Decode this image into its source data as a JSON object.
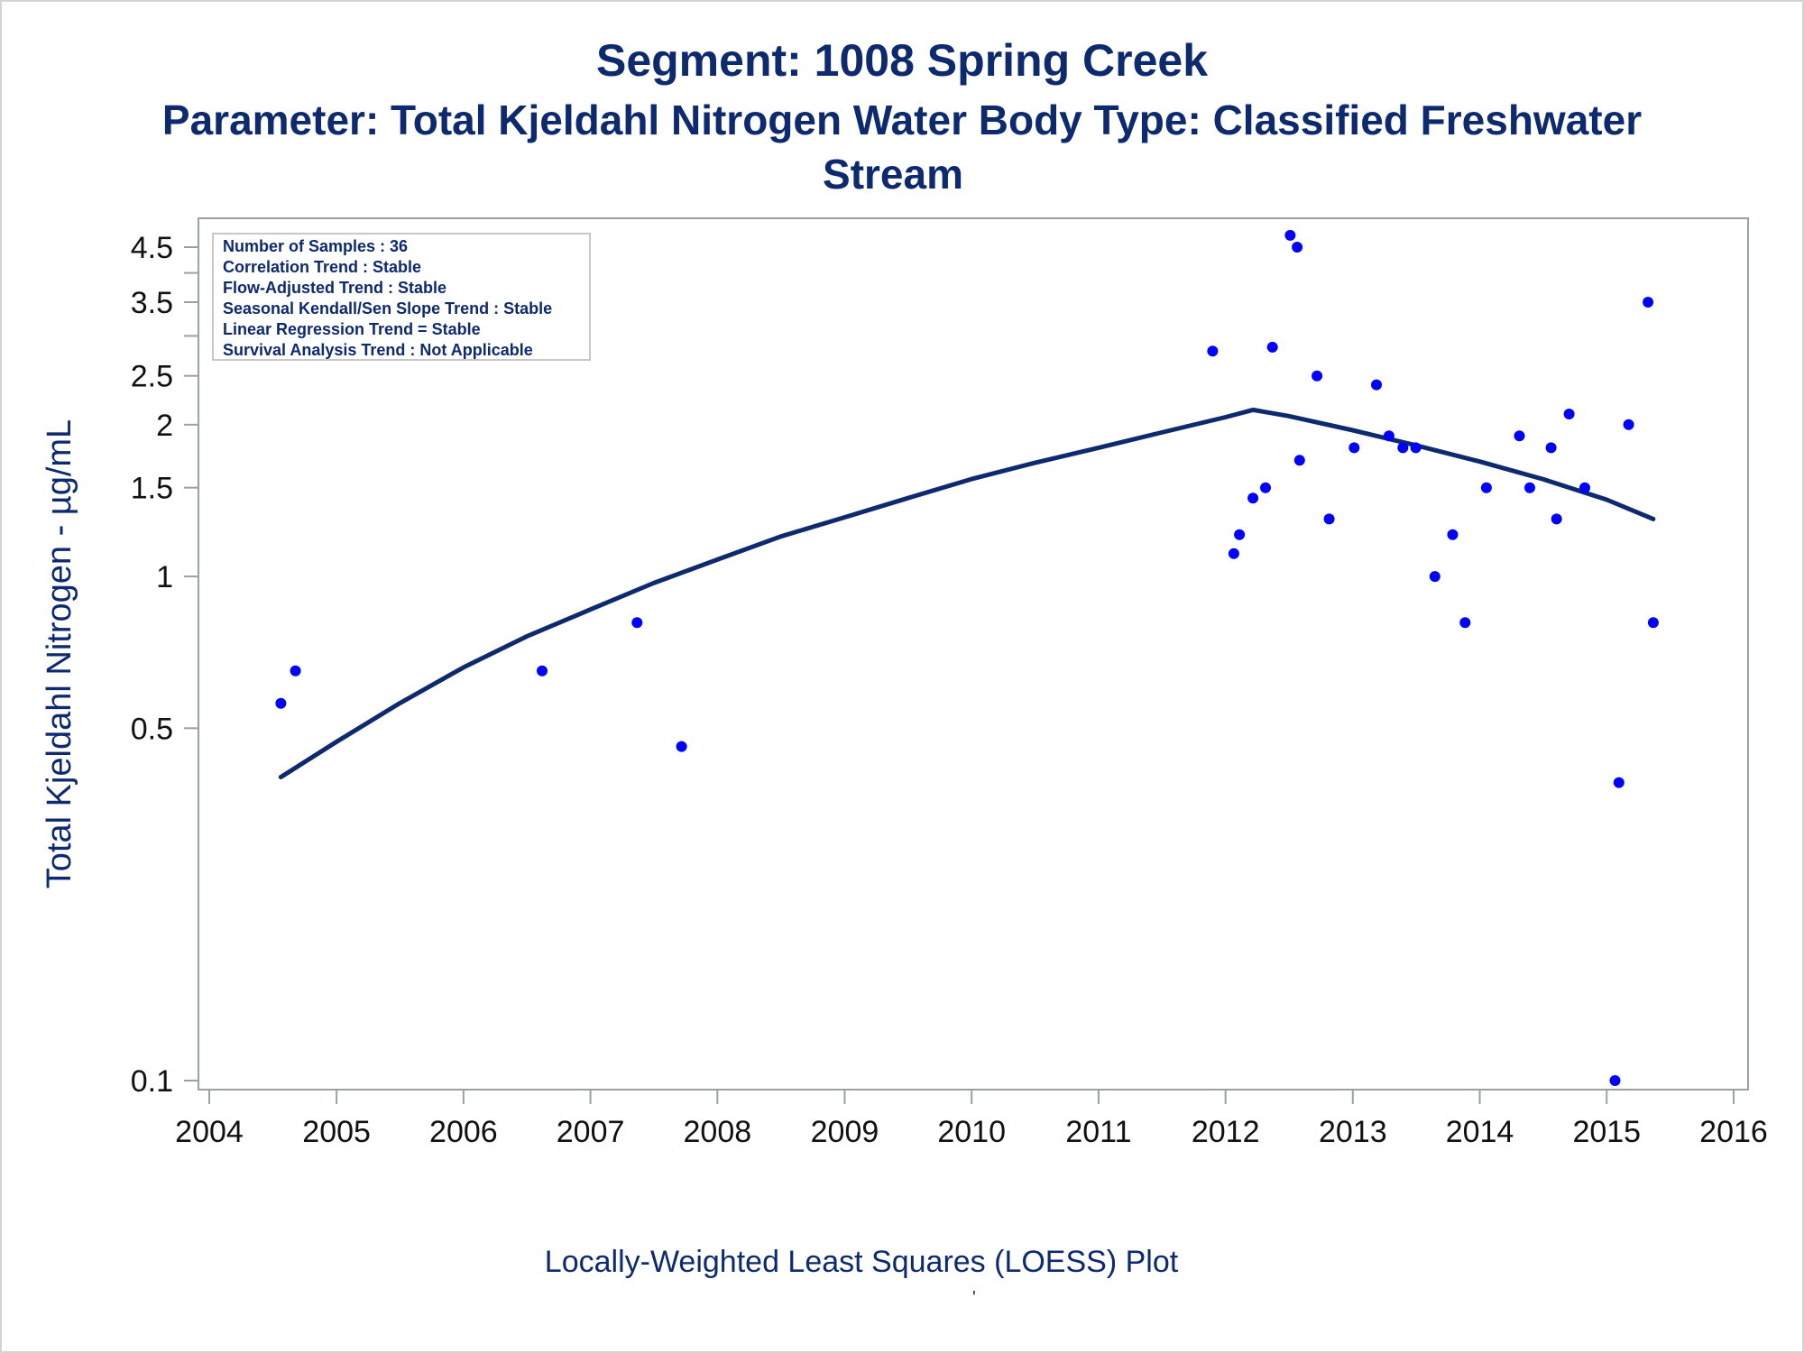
{
  "title": "Segment: 1008  Spring Creek",
  "subtitle_line1": "Parameter: Total Kjeldahl Nitrogen   Water Body Type: Classified Freshwater",
  "subtitle_line2": "Stream",
  "footnote": "Locally-Weighted Least Squares (LOESS) Plot",
  "footnote_mark": "'",
  "colors": {
    "text": "#0d2a6e",
    "points": "#0000ff",
    "curve": "#0d2a6e",
    "axis": "#9aa0a6"
  },
  "info_box": [
    "Number of Samples : 36",
    "Correlation Trend : Stable",
    "Flow-Adjusted Trend : Stable",
    "Seasonal Kendall/Sen Slope Trend : Stable",
    "Linear Regression Trend = Stable",
    "Survival Analysis Trend : Not Applicable"
  ],
  "chart_data": {
    "type": "scatter",
    "ylabel": "Total Kjeldahl Nitrogen -  µg/mL",
    "xlabel": "",
    "yscale": "log",
    "xlim": [
      "2004-01-01",
      "2016-01-01"
    ],
    "ylim": [
      0.1,
      5
    ],
    "xticks": [
      "2004",
      "2005",
      "2006",
      "2007",
      "2008",
      "2009",
      "2010",
      "2011",
      "2012",
      "2013",
      "2014",
      "2015",
      "2016"
    ],
    "yticks": [
      0.1,
      0.5,
      1,
      1.5,
      2,
      2.5,
      3.5,
      4.5
    ],
    "yticks_labels": [
      "0.1",
      "0.5",
      "1",
      "1.5",
      "2",
      "2.5",
      "3.5",
      "4.5"
    ],
    "yticks_minor": [
      3,
      4
    ],
    "series": [
      {
        "type": "scatter",
        "x": [
          "2004-07-25",
          "2004-09-05",
          "2006-08-15",
          "2007-05-15",
          "2007-09-20",
          "2011-11-25",
          "2012-01-25",
          "2012-02-10",
          "2012-03-20",
          "2012-04-25",
          "2012-05-15",
          "2012-07-05",
          "2012-07-25",
          "2012-08-01",
          "2012-09-20",
          "2012-10-25",
          "2013-01-05",
          "2013-03-10",
          "2013-04-15",
          "2013-05-25",
          "2013-07-01",
          "2013-08-25",
          "2013-10-15",
          "2013-11-20",
          "2014-01-20",
          "2014-04-25",
          "2014-05-25",
          "2014-07-25",
          "2014-08-10",
          "2014-09-15",
          "2014-10-30",
          "2015-01-25",
          "2015-02-05",
          "2015-03-05",
          "2015-04-30",
          "2015-05-15"
        ],
        "y": [
          0.56,
          0.65,
          0.65,
          0.81,
          0.46,
          2.8,
          1.11,
          1.21,
          1.43,
          1.5,
          2.85,
          4.75,
          4.5,
          1.7,
          2.5,
          1.3,
          1.8,
          2.4,
          1.9,
          1.8,
          1.8,
          1.0,
          1.21,
          0.81,
          1.5,
          1.9,
          1.5,
          1.8,
          1.3,
          2.1,
          1.5,
          0.1,
          0.39,
          2.0,
          3.5,
          0.81
        ]
      },
      {
        "type": "line",
        "x": [
          "2004-07-25",
          "2005-01-01",
          "2005-07-01",
          "2006-01-01",
          "2006-07-01",
          "2007-01-01",
          "2007-07-01",
          "2008-01-01",
          "2008-07-01",
          "2009-01-01",
          "2009-07-01",
          "2010-01-01",
          "2010-07-01",
          "2011-01-01",
          "2011-07-01",
          "2012-01-01",
          "2012-03-20",
          "2012-07-01",
          "2013-01-01",
          "2013-07-01",
          "2014-01-01",
          "2014-07-01",
          "2015-01-01",
          "2015-05-15"
        ],
        "y": [
          0.4,
          0.47,
          0.56,
          0.66,
          0.76,
          0.86,
          0.97,
          1.08,
          1.2,
          1.31,
          1.43,
          1.56,
          1.68,
          1.8,
          1.93,
          2.07,
          2.14,
          2.08,
          1.95,
          1.82,
          1.69,
          1.56,
          1.42,
          1.3
        ]
      }
    ]
  }
}
